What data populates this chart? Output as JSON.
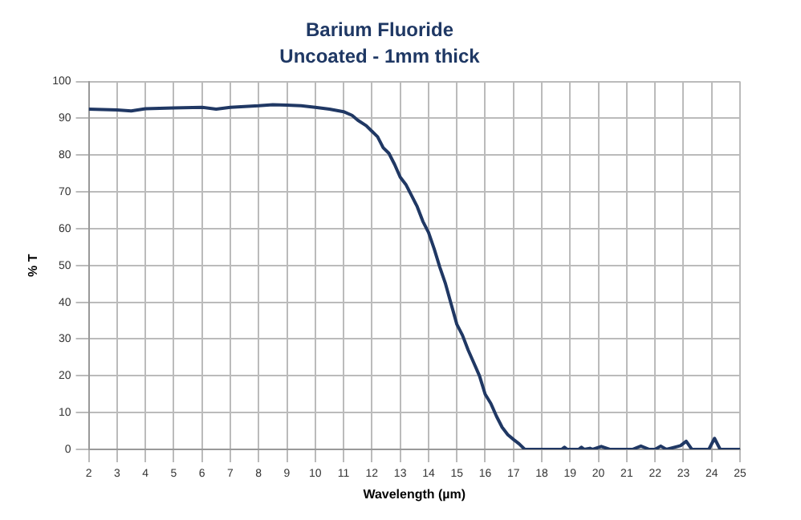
{
  "chart_data": {
    "type": "line",
    "title": "Barium Fluoride",
    "subtitle": "Uncoated - 1mm thick",
    "xlabel": "Wavelength (µm)",
    "ylabel": "% T",
    "xlim": [
      2,
      25
    ],
    "xticks": [
      2,
      3,
      4,
      5,
      6,
      7,
      8,
      9,
      10,
      11,
      12,
      13,
      14,
      15,
      16,
      17,
      18,
      19,
      20,
      21,
      22,
      23,
      24,
      25
    ],
    "ylim": [
      0,
      100
    ],
    "yticks": [
      0,
      10,
      20,
      30,
      40,
      50,
      60,
      70,
      80,
      90,
      100
    ],
    "grid": true,
    "legend": false,
    "marker": "none",
    "line_style": "solid",
    "series": [
      {
        "color": "#203864",
        "x": [
          2,
          3,
          3.5,
          4,
          5,
          6,
          6.5,
          7,
          8,
          8.5,
          9,
          9.5,
          10,
          10.5,
          11,
          11.3,
          11.5,
          11.8,
          12,
          12.2,
          12.4,
          12.6,
          12.8,
          13,
          13.2,
          13.4,
          13.6,
          13.8,
          14,
          14.2,
          14.4,
          14.6,
          14.8,
          15,
          15.2,
          15.4,
          15.6,
          15.8,
          16,
          16.2,
          16.4,
          16.6,
          16.8,
          17,
          17.2,
          17.4,
          18,
          18.7,
          18.8,
          18.9,
          19.3,
          19.4,
          19.5,
          19.7,
          19.8,
          20.1,
          20.4,
          21.2,
          21.5,
          21.8,
          22,
          22.2,
          22.4,
          22.6,
          22.9,
          23.1,
          23.3,
          23.9,
          24.1,
          24.3,
          25
        ],
        "values": [
          92.5,
          92.3,
          92,
          92.6,
          92.8,
          93,
          92.5,
          93,
          93.4,
          93.7,
          93.6,
          93.4,
          93,
          92.5,
          91.8,
          90.8,
          89.5,
          88,
          86.5,
          85,
          82,
          80.5,
          77.5,
          74,
          72,
          69,
          66,
          62,
          59,
          54.5,
          49.5,
          45,
          39.5,
          34,
          31,
          27,
          23.5,
          20,
          15,
          12.5,
          9,
          6,
          4,
          2.7,
          1.5,
          0,
          0,
          0,
          0.6,
          0,
          0,
          0.6,
          0,
          0.3,
          0,
          0.8,
          0,
          0,
          0.9,
          0,
          0,
          0.9,
          0,
          0.4,
          1,
          2.2,
          0,
          0,
          3,
          0,
          0
        ]
      }
    ]
  }
}
